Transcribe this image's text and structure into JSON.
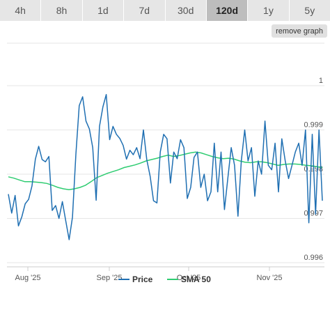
{
  "tabs": [
    {
      "label": "4h",
      "active": false
    },
    {
      "label": "8h",
      "active": false
    },
    {
      "label": "1d",
      "active": false
    },
    {
      "label": "7d",
      "active": false
    },
    {
      "label": "30d",
      "active": false
    },
    {
      "label": "120d",
      "active": true
    },
    {
      "label": "1y",
      "active": false
    },
    {
      "label": "5y",
      "active": false
    }
  ],
  "remove_graph_label": "remove graph",
  "chart_data": {
    "type": "line",
    "x_tick_labels": [
      "Aug '25",
      "Sep '25",
      "Oct '25",
      "Nov '25"
    ],
    "y_tick_labels": [
      "1",
      "0.999",
      "0.998",
      "0.997",
      "0.996"
    ],
    "ylim": [
      0.996,
      1.0
    ],
    "legend_position": "bottom-center",
    "grid": true,
    "series": [
      {
        "name": "Price",
        "color": "#1f6fb2",
        "values": [
          0.99755,
          0.99712,
          0.99752,
          0.99683,
          0.99704,
          0.99733,
          0.99743,
          0.99773,
          0.99834,
          0.99863,
          0.99833,
          0.99828,
          0.9984,
          0.99718,
          0.99729,
          0.997,
          0.99738,
          0.99695,
          0.99652,
          0.99703,
          0.99845,
          0.99955,
          0.99975,
          0.9992,
          0.99902,
          0.9986,
          0.99741,
          0.99908,
          0.99952,
          0.9998,
          0.99878,
          0.99908,
          0.9989,
          0.99881,
          0.99865,
          0.99834,
          0.99854,
          0.99844,
          0.9986,
          0.99835,
          0.999,
          0.99833,
          0.99795,
          0.9974,
          0.99735,
          0.9985,
          0.9989,
          0.9988,
          0.9978,
          0.9985,
          0.99835,
          0.99878,
          0.9986,
          0.99745,
          0.9977,
          0.99838,
          0.9985,
          0.9977,
          0.998,
          0.9974,
          0.9976,
          0.9987,
          0.9976,
          0.9985,
          0.9972,
          0.9979,
          0.9986,
          0.9982,
          0.99705,
          0.9983,
          0.999,
          0.9983,
          0.9986,
          0.9975,
          0.9983,
          0.998,
          0.9992,
          0.9982,
          0.9981,
          0.9987,
          0.9976,
          0.9988,
          0.9983,
          0.9979,
          0.9982,
          0.9985,
          0.9987,
          0.9982,
          0.999,
          0.9969,
          0.9989,
          0.9971,
          0.999,
          0.9974
        ]
      },
      {
        "name": "SMA 50",
        "color": "#2ecc71",
        "values": [
          0.99794,
          0.99791,
          0.99787,
          0.99783,
          0.99783,
          0.99782,
          0.99781,
          0.99779,
          0.99775,
          0.9977,
          0.99767,
          0.99765,
          0.99767,
          0.9977,
          0.99775,
          0.99783,
          0.99792,
          0.99797,
          0.99802,
          0.99806,
          0.9981,
          0.99815,
          0.99818,
          0.99821,
          0.99825,
          0.9983,
          0.99833,
          0.99836,
          0.9984,
          0.99843,
          0.9984,
          0.99842,
          0.99845,
          0.99848,
          0.9985,
          0.99848,
          0.99844,
          0.9984,
          0.99837,
          0.99835,
          0.99836,
          0.99834,
          0.9983,
          0.99827,
          0.99826,
          0.99828,
          0.99828,
          0.99826,
          0.99823,
          0.9982,
          0.99822,
          0.99823,
          0.99823,
          0.99822,
          0.9982,
          0.99819,
          0.99817,
          0.99815
        ]
      }
    ]
  }
}
